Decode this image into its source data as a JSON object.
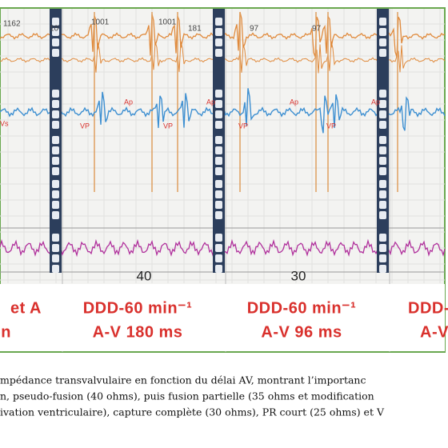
{
  "figure": {
    "markers": [
      "1162",
      "10",
      "1001",
      "1001",
      "181",
      "97",
      "97"
    ],
    "annotations": [
      "Vs",
      "Ap",
      "VP",
      "Ap",
      "VP",
      "Ap",
      "VP",
      "Ap",
      "VP"
    ],
    "panels": [
      {
        "label": "40"
      },
      {
        "label": "30"
      }
    ],
    "modes": [
      {
        "line1": "et A",
        "line2": "on"
      },
      {
        "line1": "DDD-60 min⁻¹",
        "line2": "A-V 180 ms"
      },
      {
        "line1": "DDD-60 min⁻¹",
        "line2": "A-V 96 ms"
      },
      {
        "line1": "DDD-",
        "line2": "A-V"
      }
    ]
  },
  "caption": {
    "lines": [
      "mpédance transvalvulaire en fonction du délai AV, montrant l’importanc",
      "n, pseudo-fusion (40 ohms), puis fusion partielle (35 ohms et modification",
      "ivation ventriculaire), capture complète (30 ohms), PR court (25 ohms) et V"
    ]
  }
}
